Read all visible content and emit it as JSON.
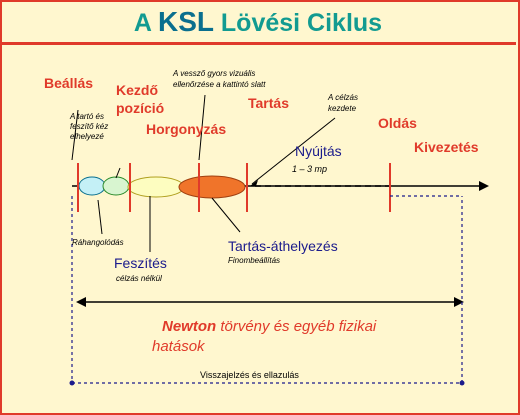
{
  "title": {
    "prefix": "A ",
    "ksl": "KSL",
    "suffix": " Lövési Ciklus"
  },
  "labels": {
    "beallas": "Beállás",
    "kezdo_line1": "Kezdő",
    "kezdo_line2": "pozíció",
    "horgonyzas": "Horgonyzás",
    "tartas": "Tartás",
    "oldas": "Oldás",
    "kivezetes": "Kivezetés",
    "nyujtas": "Nyújtás",
    "nyujtas_time": "1 – 3 mp",
    "taroto_1": "A tartó és",
    "taroto_2": "feszítő kéz",
    "taroto_3": "elhelyezé",
    "vesszo_1": "A vessző gyors vizuális",
    "vesszo_2": "ellenőrzése a kattintó slatt",
    "celzas_1": "A célzás",
    "celzas_2": "kezdete",
    "rahangolodas": "Ráhangolódás",
    "feszites": "Feszítés",
    "feszites_sub": "célzás nélkül",
    "tartas_athelyezes": "Tartás-áthelyezés",
    "finombeallitas": "Finombeállítás",
    "newton_bold": "Newton",
    "newton_rest": " törvény és egyéb fizikai",
    "hatasok": "hatások",
    "visszajelzes": "Visszajelzés és ellazulás"
  },
  "colors": {
    "title": "#129b91",
    "red": "#e03a2a",
    "navy": "#1b1b8c",
    "background": "#fff7cf",
    "phase_cyan": "#c4f0f6",
    "phase_green": "#d8f5d0",
    "phase_yellow": "#fdfdc0",
    "phase_orange": "#f0742a"
  }
}
